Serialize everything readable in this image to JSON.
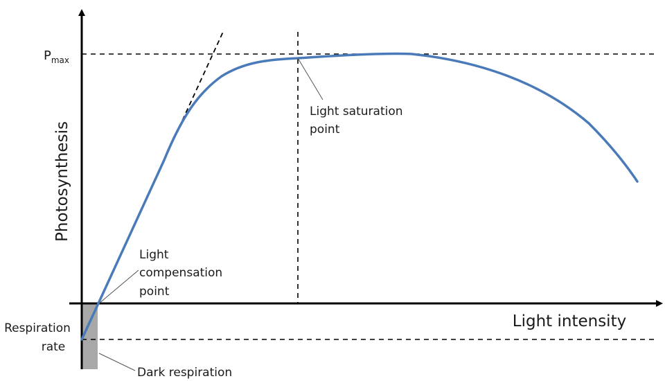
{
  "labels": {
    "y_axis": "Photosynthesis",
    "x_axis": "Light intensity",
    "pmax_main": "P",
    "pmax_sub": "max",
    "saturation_line1": "Light saturation",
    "saturation_line2": "point",
    "compensation_line1": "Light",
    "compensation_line2": "compensation",
    "compensation_line3": "point",
    "respiration_line1": "Respiration",
    "respiration_line2": "rate",
    "dark_respiration": "Dark respiration"
  },
  "colors": {
    "curve": "#4a7ab8",
    "axis": "#000000",
    "dashed": "#000000",
    "shaded": "#a8a8a8",
    "leader": "#555555"
  }
}
